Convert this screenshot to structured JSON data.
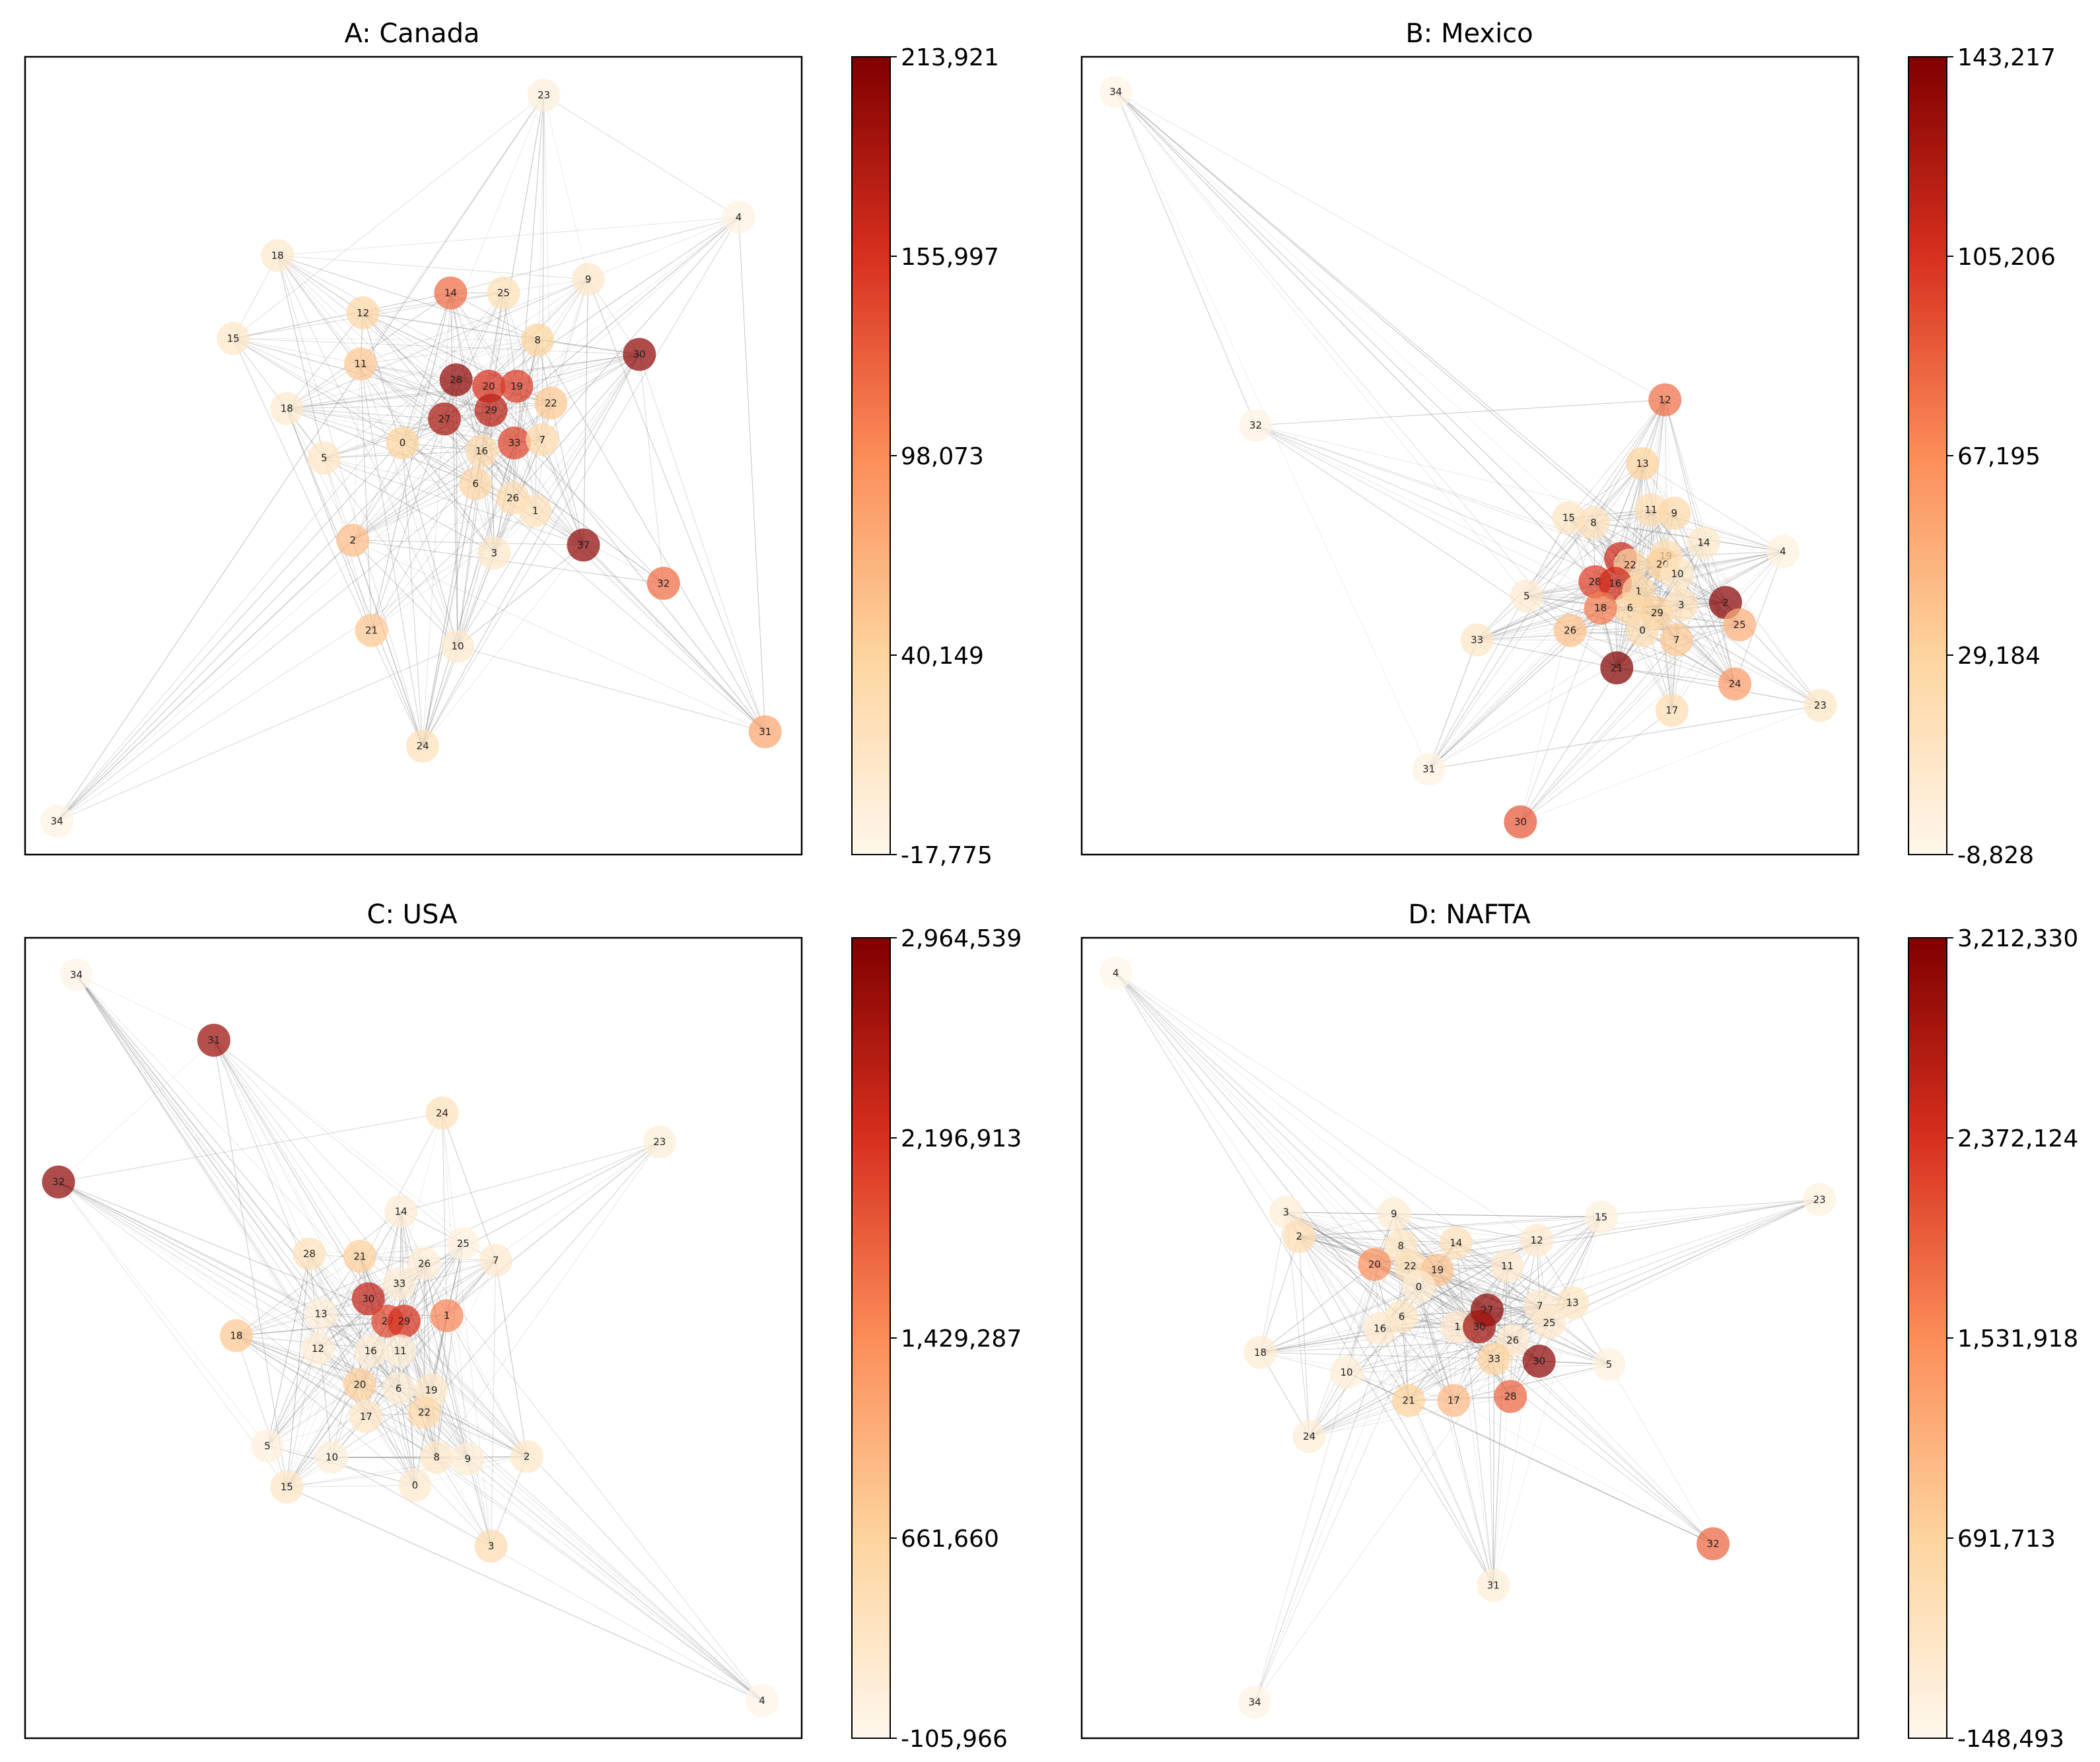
{
  "figure": {
    "panel_count": 4,
    "colormap": "OrRd"
  },
  "chart_data": [
    {
      "type": "network",
      "title": "A: Canada",
      "colorbar": {
        "min": -17775,
        "max": 213921,
        "tick_labels": [
          "213,921",
          "155,997",
          "98,073",
          "40,149",
          "-17,775"
        ]
      },
      "nodes": [
        {
          "id": "23",
          "nx": 0.668,
          "ny": 0.048,
          "v": -5000
        },
        {
          "id": "4",
          "nx": 0.919,
          "ny": 0.201,
          "v": -8000
        },
        {
          "id": "18",
          "nx": 0.325,
          "ny": 0.249,
          "v": 5000
        },
        {
          "id": "9",
          "nx": 0.725,
          "ny": 0.279,
          "v": 8000
        },
        {
          "id": "14",
          "nx": 0.548,
          "ny": 0.296,
          "v": 120000
        },
        {
          "id": "25",
          "nx": 0.616,
          "ny": 0.296,
          "v": 22000
        },
        {
          "id": "12",
          "nx": 0.435,
          "ny": 0.321,
          "v": 35000
        },
        {
          "id": "15",
          "nx": 0.268,
          "ny": 0.353,
          "v": 8000
        },
        {
          "id": "8",
          "nx": 0.66,
          "ny": 0.355,
          "v": 40000
        },
        {
          "id": "30",
          "nx": 0.791,
          "ny": 0.373,
          "v": 205000
        },
        {
          "id": "11",
          "nx": 0.432,
          "ny": 0.385,
          "v": 50000
        },
        {
          "id": "28",
          "nx": 0.555,
          "ny": 0.405,
          "v": 205000
        },
        {
          "id": "20",
          "nx": 0.597,
          "ny": 0.413,
          "v": 155000
        },
        {
          "id": "19",
          "nx": 0.633,
          "ny": 0.413,
          "v": 150000
        },
        {
          "id": "29",
          "nx": 0.6,
          "ny": 0.443,
          "v": 175000
        },
        {
          "id": "22",
          "nx": 0.677,
          "ny": 0.434,
          "v": 50000
        },
        {
          "id": "18",
          "nx": 0.337,
          "ny": 0.441,
          "v": 5000
        },
        {
          "id": "27",
          "nx": 0.54,
          "ny": 0.454,
          "v": 185000
        },
        {
          "id": "0",
          "nx": 0.486,
          "ny": 0.484,
          "v": 40000
        },
        {
          "id": "33",
          "nx": 0.63,
          "ny": 0.484,
          "v": 145000
        },
        {
          "id": "7",
          "nx": 0.666,
          "ny": 0.48,
          "v": 30000
        },
        {
          "id": "16",
          "nx": 0.588,
          "ny": 0.494,
          "v": 30000
        },
        {
          "id": "5",
          "nx": 0.385,
          "ny": 0.503,
          "v": 12000
        },
        {
          "id": "6",
          "nx": 0.58,
          "ny": 0.535,
          "v": 35000
        },
        {
          "id": "26",
          "nx": 0.628,
          "ny": 0.553,
          "v": 25000
        },
        {
          "id": "1",
          "nx": 0.657,
          "ny": 0.569,
          "v": 20000
        },
        {
          "id": "2",
          "nx": 0.422,
          "ny": 0.606,
          "v": 60000
        },
        {
          "id": "37",
          "nx": 0.719,
          "ny": 0.612,
          "v": 205000
        },
        {
          "id": "3",
          "nx": 0.604,
          "ny": 0.622,
          "v": 10000
        },
        {
          "id": "32",
          "nx": 0.822,
          "ny": 0.66,
          "v": 120000
        },
        {
          "id": "10",
          "nx": 0.557,
          "ny": 0.739,
          "v": 5000
        },
        {
          "id": "21",
          "nx": 0.446,
          "ny": 0.719,
          "v": 50000
        },
        {
          "id": "24",
          "nx": 0.512,
          "ny": 0.864,
          "v": 20000
        },
        {
          "id": "31",
          "nx": 0.953,
          "ny": 0.846,
          "v": 80000
        },
        {
          "id": "34",
          "nx": 0.041,
          "ny": 0.958,
          "v": -10000
        }
      ]
    },
    {
      "type": "network",
      "title": "B: Mexico",
      "colorbar": {
        "min": -8828,
        "max": 143217,
        "tick_labels": [
          "143,217",
          "105,206",
          "67,195",
          "29,184",
          "-8,828"
        ]
      },
      "nodes": [
        {
          "id": "34",
          "nx": 0.044,
          "ny": 0.044,
          "v": -5000
        },
        {
          "id": "12",
          "nx": 0.751,
          "ny": 0.43,
          "v": 80000
        },
        {
          "id": "32",
          "nx": 0.224,
          "ny": 0.462,
          "v": -3000
        },
        {
          "id": "13",
          "nx": 0.722,
          "ny": 0.51,
          "v": 30000
        },
        {
          "id": "11",
          "nx": 0.733,
          "ny": 0.568,
          "v": 20000
        },
        {
          "id": "9",
          "nx": 0.763,
          "ny": 0.572,
          "v": 25000
        },
        {
          "id": "15",
          "nx": 0.627,
          "ny": 0.578,
          "v": 12000
        },
        {
          "id": "8",
          "nx": 0.659,
          "ny": 0.584,
          "v": 15000
        },
        {
          "id": "14",
          "nx": 0.801,
          "ny": 0.609,
          "v": 8000
        },
        {
          "id": "4",
          "nx": 0.903,
          "ny": 0.62,
          "v": -2000
        },
        {
          "id": "27",
          "nx": 0.694,
          "ny": 0.629,
          "v": 110000
        },
        {
          "id": "22",
          "nx": 0.706,
          "ny": 0.637,
          "v": 25000
        },
        {
          "id": "19",
          "nx": 0.752,
          "ny": 0.626,
          "v": 20000
        },
        {
          "id": "20",
          "nx": 0.748,
          "ny": 0.636,
          "v": 30000
        },
        {
          "id": "10",
          "nx": 0.767,
          "ny": 0.648,
          "v": 10000
        },
        {
          "id": "28",
          "nx": 0.661,
          "ny": 0.658,
          "v": 100000
        },
        {
          "id": "16",
          "nx": 0.687,
          "ny": 0.66,
          "v": 110000
        },
        {
          "id": "1",
          "nx": 0.717,
          "ny": 0.67,
          "v": 25000
        },
        {
          "id": "5",
          "nx": 0.573,
          "ny": 0.676,
          "v": 5000
        },
        {
          "id": "6",
          "nx": 0.706,
          "ny": 0.691,
          "v": 25000
        },
        {
          "id": "18",
          "nx": 0.668,
          "ny": 0.691,
          "v": 75000
        },
        {
          "id": "29",
          "nx": 0.741,
          "ny": 0.697,
          "v": 30000
        },
        {
          "id": "3",
          "nx": 0.772,
          "ny": 0.687,
          "v": 15000
        },
        {
          "id": "2",
          "nx": 0.829,
          "ny": 0.684,
          "v": 140000
        },
        {
          "id": "25",
          "nx": 0.847,
          "ny": 0.712,
          "v": 50000
        },
        {
          "id": "26",
          "nx": 0.629,
          "ny": 0.719,
          "v": 40000
        },
        {
          "id": "0",
          "nx": 0.722,
          "ny": 0.719,
          "v": 20000
        },
        {
          "id": "7",
          "nx": 0.766,
          "ny": 0.731,
          "v": 35000
        },
        {
          "id": "33",
          "nx": 0.509,
          "ny": 0.731,
          "v": 10000
        },
        {
          "id": "21",
          "nx": 0.689,
          "ny": 0.766,
          "v": 143000
        },
        {
          "id": "24",
          "nx": 0.841,
          "ny": 0.786,
          "v": 60000
        },
        {
          "id": "17",
          "nx": 0.76,
          "ny": 0.819,
          "v": 20000
        },
        {
          "id": "23",
          "nx": 0.951,
          "ny": 0.813,
          "v": 10000
        },
        {
          "id": "31",
          "nx": 0.447,
          "ny": 0.893,
          "v": -3000
        },
        {
          "id": "30",
          "nx": 0.565,
          "ny": 0.959,
          "v": 90000
        }
      ]
    },
    {
      "type": "network",
      "title": "C: USA",
      "colorbar": {
        "min": -105966,
        "max": 2964539,
        "tick_labels": [
          "2,964,539",
          "2,196,913",
          "1,429,287",
          "661,660",
          "-105,966"
        ]
      },
      "nodes": [
        {
          "id": "34",
          "nx": 0.066,
          "ny": 0.046,
          "v": -50000
        },
        {
          "id": "31",
          "nx": 0.243,
          "ny": 0.128,
          "v": 2750000
        },
        {
          "id": "32",
          "nx": 0.043,
          "ny": 0.305,
          "v": 2850000
        },
        {
          "id": "24",
          "nx": 0.537,
          "ny": 0.219,
          "v": 400000
        },
        {
          "id": "23",
          "nx": 0.817,
          "ny": 0.255,
          "v": 100000
        },
        {
          "id": "14",
          "nx": 0.484,
          "ny": 0.342,
          "v": 150000
        },
        {
          "id": "25",
          "nx": 0.564,
          "ny": 0.382,
          "v": 50000
        },
        {
          "id": "28",
          "nx": 0.366,
          "ny": 0.395,
          "v": 400000
        },
        {
          "id": "21",
          "nx": 0.431,
          "ny": 0.398,
          "v": 700000
        },
        {
          "id": "26",
          "nx": 0.514,
          "ny": 0.407,
          "v": 150000
        },
        {
          "id": "7",
          "nx": 0.606,
          "ny": 0.403,
          "v": 200000
        },
        {
          "id": "33",
          "nx": 0.482,
          "ny": 0.432,
          "v": 150000
        },
        {
          "id": "30",
          "nx": 0.442,
          "ny": 0.451,
          "v": 2400000
        },
        {
          "id": "13",
          "nx": 0.381,
          "ny": 0.47,
          "v": 100000
        },
        {
          "id": "1",
          "nx": 0.543,
          "ny": 0.472,
          "v": 1500000
        },
        {
          "id": "27",
          "nx": 0.467,
          "ny": 0.479,
          "v": 2000000
        },
        {
          "id": "29",
          "nx": 0.488,
          "ny": 0.479,
          "v": 2200000
        },
        {
          "id": "18",
          "nx": 0.272,
          "ny": 0.497,
          "v": 800000
        },
        {
          "id": "12",
          "nx": 0.377,
          "ny": 0.513,
          "v": 150000
        },
        {
          "id": "16",
          "nx": 0.445,
          "ny": 0.516,
          "v": 150000
        },
        {
          "id": "11",
          "nx": 0.483,
          "ny": 0.516,
          "v": 100000
        },
        {
          "id": "20",
          "nx": 0.431,
          "ny": 0.558,
          "v": 700000
        },
        {
          "id": "6",
          "nx": 0.481,
          "ny": 0.563,
          "v": 150000
        },
        {
          "id": "19",
          "nx": 0.523,
          "ny": 0.565,
          "v": 250000
        },
        {
          "id": "17",
          "nx": 0.439,
          "ny": 0.598,
          "v": 300000
        },
        {
          "id": "22",
          "nx": 0.514,
          "ny": 0.593,
          "v": 550000
        },
        {
          "id": "8",
          "nx": 0.53,
          "ny": 0.649,
          "v": 250000
        },
        {
          "id": "9",
          "nx": 0.57,
          "ny": 0.651,
          "v": 150000
        },
        {
          "id": "2",
          "nx": 0.646,
          "ny": 0.648,
          "v": 250000
        },
        {
          "id": "5",
          "nx": 0.312,
          "ny": 0.635,
          "v": 50000
        },
        {
          "id": "10",
          "nx": 0.395,
          "ny": 0.649,
          "v": 100000
        },
        {
          "id": "15",
          "nx": 0.337,
          "ny": 0.686,
          "v": 300000
        },
        {
          "id": "0",
          "nx": 0.502,
          "ny": 0.684,
          "v": 200000
        },
        {
          "id": "3",
          "nx": 0.6,
          "ny": 0.76,
          "v": 500000
        },
        {
          "id": "4",
          "nx": 0.949,
          "ny": 0.953,
          "v": -50000
        }
      ]
    },
    {
      "type": "network",
      "title": "D: NAFTA",
      "colorbar": {
        "min": -148493,
        "max": 3212330,
        "tick_labels": [
          "3,212,330",
          "2,372,124",
          "1,531,918",
          "691,713",
          "-148,493"
        ]
      },
      "nodes": [
        {
          "id": "4",
          "nx": 0.044,
          "ny": 0.044,
          "v": -100000
        },
        {
          "id": "23",
          "nx": 0.95,
          "ny": 0.327,
          "v": 0
        },
        {
          "id": "3",
          "nx": 0.263,
          "ny": 0.343,
          "v": 100000
        },
        {
          "id": "9",
          "nx": 0.402,
          "ny": 0.345,
          "v": 150000
        },
        {
          "id": "15",
          "nx": 0.669,
          "ny": 0.349,
          "v": 50000
        },
        {
          "id": "2",
          "nx": 0.28,
          "ny": 0.373,
          "v": 500000
        },
        {
          "id": "8",
          "nx": 0.411,
          "ny": 0.385,
          "v": 300000
        },
        {
          "id": "14",
          "nx": 0.482,
          "ny": 0.381,
          "v": 400000
        },
        {
          "id": "12",
          "nx": 0.586,
          "ny": 0.378,
          "v": 200000
        },
        {
          "id": "20",
          "nx": 0.377,
          "ny": 0.408,
          "v": 1500000
        },
        {
          "id": "22",
          "nx": 0.423,
          "ny": 0.41,
          "v": 400000
        },
        {
          "id": "19",
          "nx": 0.458,
          "ny": 0.415,
          "v": 900000
        },
        {
          "id": "11",
          "nx": 0.548,
          "ny": 0.41,
          "v": 200000
        },
        {
          "id": "0",
          "nx": 0.434,
          "ny": 0.436,
          "v": 150000
        },
        {
          "id": "13",
          "nx": 0.632,
          "ny": 0.456,
          "v": 300000
        },
        {
          "id": "27",
          "nx": 0.522,
          "ny": 0.465,
          "v": 3100000
        },
        {
          "id": "7",
          "nx": 0.59,
          "ny": 0.46,
          "v": 200000
        },
        {
          "id": "6",
          "nx": 0.412,
          "ny": 0.473,
          "v": 300000
        },
        {
          "id": "25",
          "nx": 0.602,
          "ny": 0.481,
          "v": 200000
        },
        {
          "id": "16",
          "nx": 0.384,
          "ny": 0.488,
          "v": 200000
        },
        {
          "id": "1",
          "nx": 0.484,
          "ny": 0.486,
          "v": 200000
        },
        {
          "id": "30",
          "nx": 0.512,
          "ny": 0.486,
          "v": 2900000
        },
        {
          "id": "26",
          "nx": 0.555,
          "ny": 0.503,
          "v": 200000
        },
        {
          "id": "18",
          "nx": 0.23,
          "ny": 0.518,
          "v": 150000
        },
        {
          "id": "33",
          "nx": 0.531,
          "ny": 0.526,
          "v": 700000
        },
        {
          "id": "30",
          "nx": 0.589,
          "ny": 0.529,
          "v": 3100000
        },
        {
          "id": "5",
          "nx": 0.679,
          "ny": 0.533,
          "v": 0
        },
        {
          "id": "10",
          "nx": 0.341,
          "ny": 0.543,
          "v": 100000
        },
        {
          "id": "28",
          "nx": 0.552,
          "ny": 0.573,
          "v": 1900000
        },
        {
          "id": "21",
          "nx": 0.421,
          "ny": 0.578,
          "v": 700000
        },
        {
          "id": "17",
          "nx": 0.479,
          "ny": 0.578,
          "v": 1000000
        },
        {
          "id": "24",
          "nx": 0.293,
          "ny": 0.623,
          "v": 100000
        },
        {
          "id": "32",
          "nx": 0.813,
          "ny": 0.757,
          "v": 1900000
        },
        {
          "id": "31",
          "nx": 0.53,
          "ny": 0.809,
          "v": 100000
        },
        {
          "id": "34",
          "nx": 0.223,
          "ny": 0.955,
          "v": -50000
        }
      ]
    }
  ]
}
